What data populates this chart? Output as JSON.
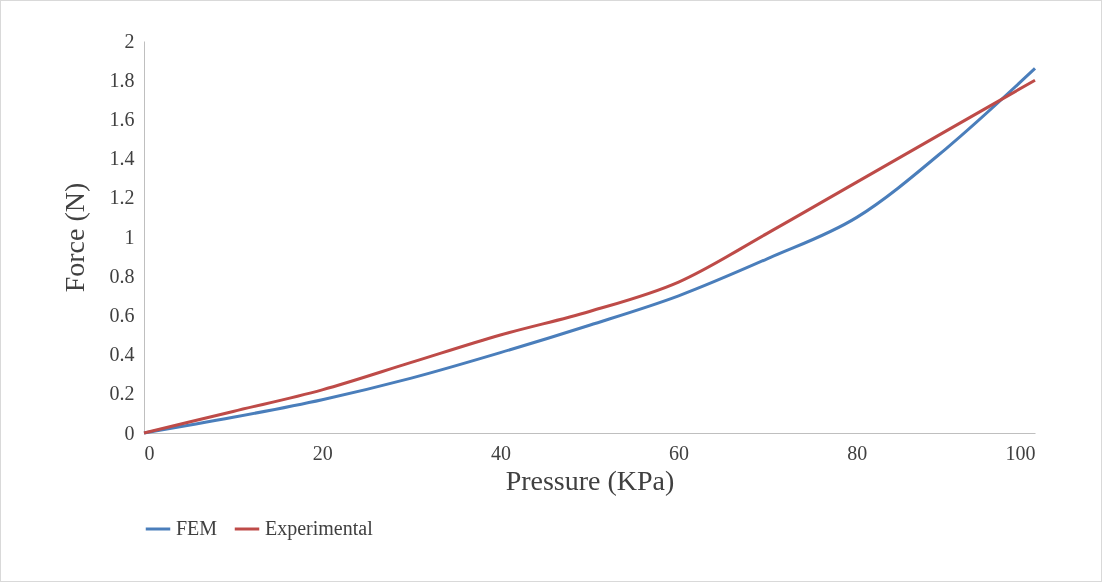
{
  "chart_data": {
    "type": "line",
    "xlabel": "Pressure (KPa)",
    "ylabel": "Force (N)",
    "x": [
      0,
      10,
      20,
      30,
      40,
      50,
      60,
      70,
      80,
      90,
      100
    ],
    "series": [
      {
        "name": "FEM",
        "color": "#4a7ebb",
        "values": [
          0,
          0.08,
          0.17,
          0.28,
          0.41,
          0.55,
          0.7,
          0.89,
          1.1,
          1.45,
          1.86
        ]
      },
      {
        "name": "Experimental",
        "color": "#be4b48",
        "values": [
          0,
          0.11,
          0.22,
          0.36,
          0.5,
          0.62,
          0.77,
          1.02,
          1.28,
          1.54,
          1.8
        ]
      }
    ],
    "xlim": [
      0,
      100
    ],
    "xticks": [
      0,
      20,
      40,
      60,
      80,
      100
    ],
    "ylim": [
      0,
      2
    ],
    "yticks": [
      0,
      0.2,
      0.4,
      0.6,
      0.8,
      1,
      1.2,
      1.4,
      1.6,
      1.8,
      2
    ],
    "grid": false,
    "legend": "bottom",
    "marker": "none",
    "line_style": "solid"
  }
}
